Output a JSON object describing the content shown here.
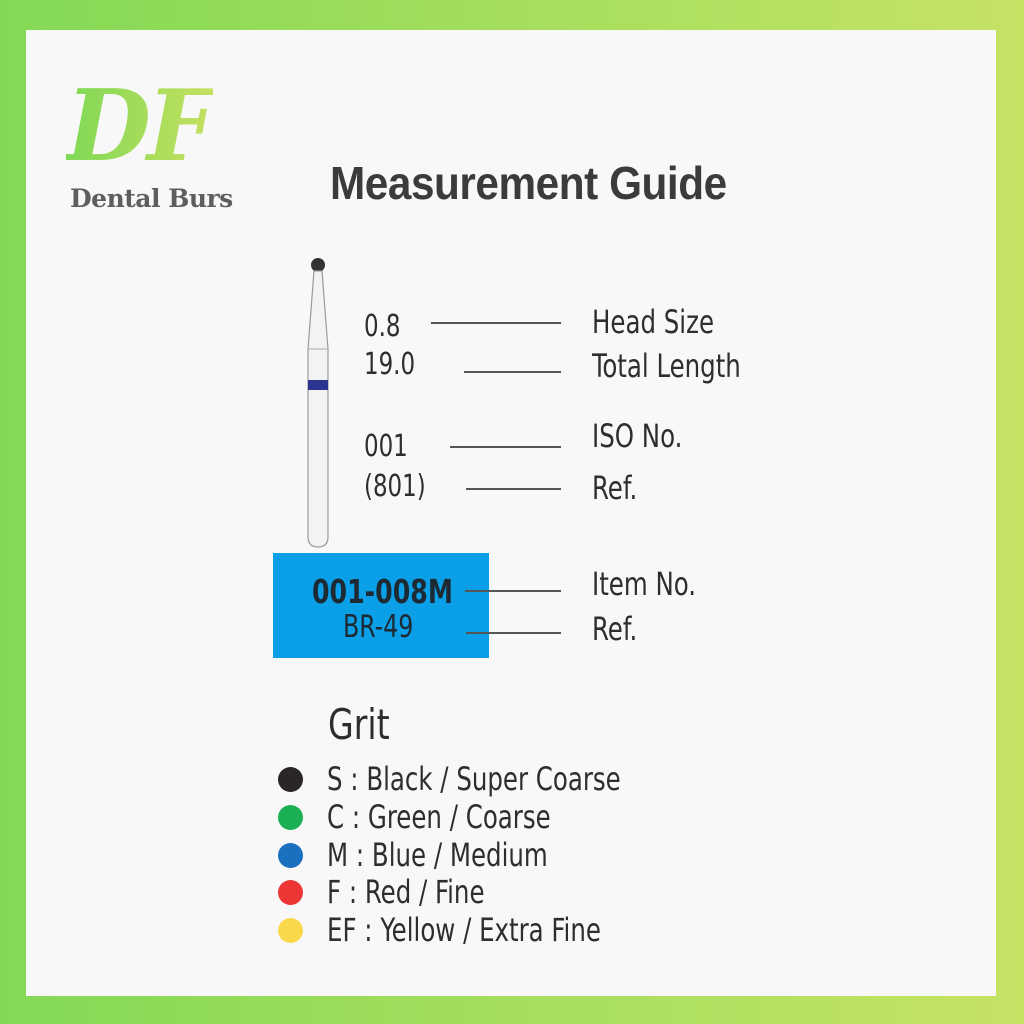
{
  "logo": {
    "mark": "DF",
    "subtitle": "Dental Burs"
  },
  "title": "Measurement Guide",
  "measurements": [
    {
      "value": "0.8",
      "label": "Head Size"
    },
    {
      "value": "19.0",
      "label": "Total Length"
    },
    {
      "value": "001",
      "label": "ISO No."
    },
    {
      "value": "(801)",
      "label": "Ref."
    }
  ],
  "item_box": {
    "item_no": "001-008M",
    "item_label": "Item No.",
    "ref": "BR-49",
    "ref_label": "Ref.",
    "color": "#0a9fe6"
  },
  "bur": {
    "band_color": "#2b3590",
    "grit": "M"
  },
  "grit": {
    "heading": "Grit",
    "items": [
      {
        "text": "S : Black / Super Coarse",
        "color": "#2a2626"
      },
      {
        "text": "C : Green / Coarse",
        "color": "#1cb055"
      },
      {
        "text": "M : Blue / Medium",
        "color": "#1a6fbe"
      },
      {
        "text": "F : Red / Fine",
        "color": "#ec3535"
      },
      {
        "text": "EF : Yellow / Extra Fine",
        "color": "#f9d94c"
      }
    ]
  }
}
